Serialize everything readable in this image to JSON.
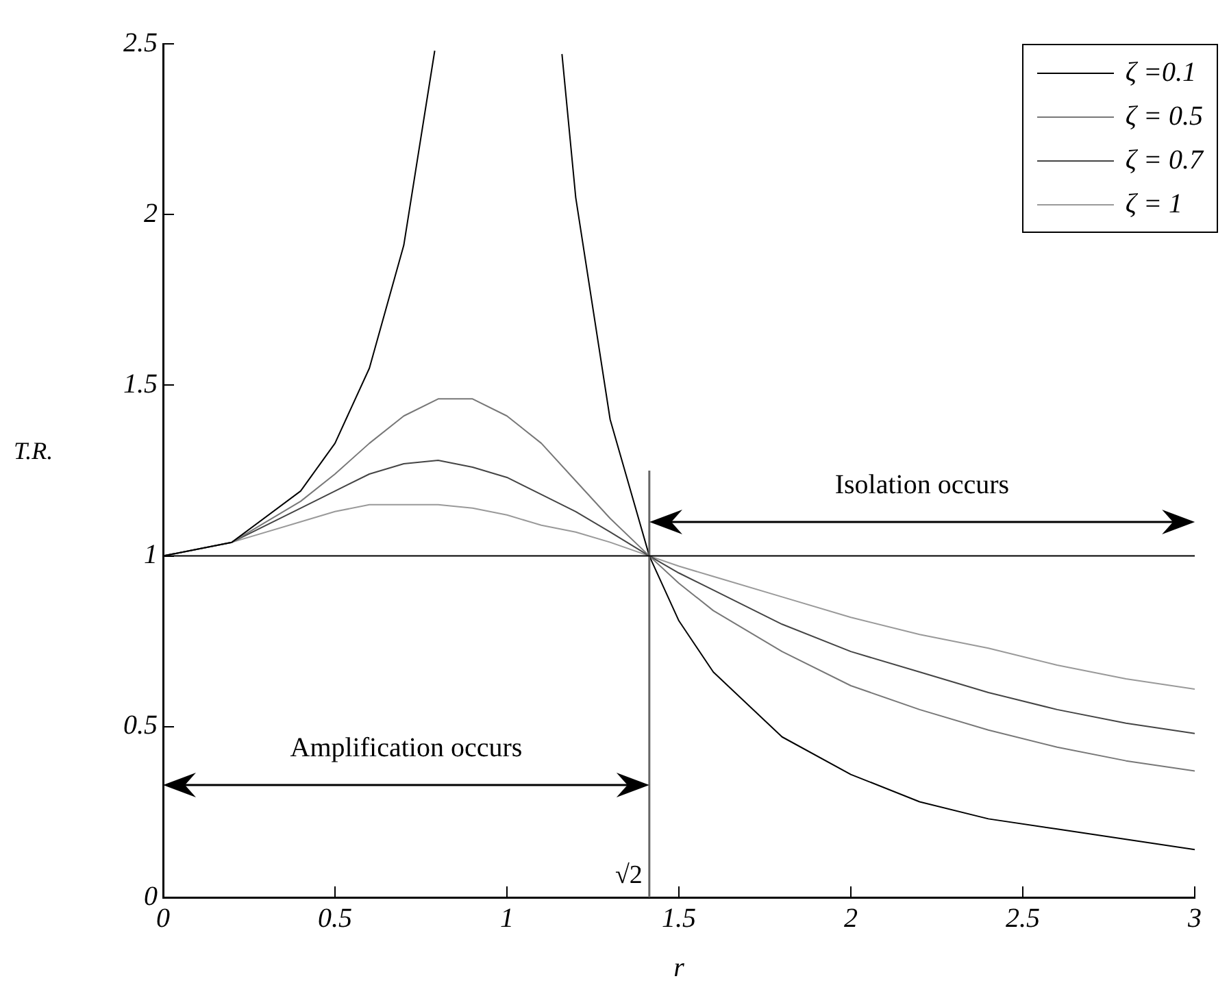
{
  "chart_data": {
    "type": "line",
    "xlabel": "r",
    "ylabel": "T.R.",
    "xlim": [
      0,
      3
    ],
    "ylim": [
      0,
      2.5
    ],
    "xticks": [
      0,
      0.5,
      1,
      1.5,
      2,
      2.5,
      3
    ],
    "yticks": [
      0,
      0.5,
      1,
      1.5,
      2,
      2.5
    ],
    "grid": false,
    "legend": "top right",
    "marker": "none",
    "line_style": "solid",
    "series": [
      {
        "name": "ζ =0.1",
        "color": "#000000",
        "x": [
          0,
          0.2,
          0.4,
          0.5,
          0.6,
          0.7,
          0.79,
          1.0,
          1.16,
          1.2,
          1.3,
          1.414,
          1.5,
          1.6,
          1.8,
          2.0,
          2.2,
          2.4,
          2.6,
          2.8,
          3.0
        ],
        "values": [
          1,
          1.04,
          1.19,
          1.33,
          1.55,
          1.91,
          2.48,
          null,
          2.47,
          2.05,
          1.4,
          1,
          0.81,
          0.66,
          0.47,
          0.36,
          0.28,
          0.23,
          0.2,
          0.17,
          0.14
        ]
      },
      {
        "name": "ζ = 0.5",
        "color": "#777777",
        "x": [
          0,
          0.2,
          0.4,
          0.5,
          0.6,
          0.7,
          0.8,
          0.9,
          1.0,
          1.1,
          1.2,
          1.3,
          1.414,
          1.5,
          1.6,
          1.8,
          2.0,
          2.2,
          2.4,
          2.6,
          2.8,
          3.0
        ],
        "values": [
          1,
          1.04,
          1.16,
          1.24,
          1.33,
          1.41,
          1.46,
          1.46,
          1.41,
          1.33,
          1.22,
          1.11,
          1,
          0.92,
          0.84,
          0.72,
          0.62,
          0.55,
          0.49,
          0.44,
          0.4,
          0.37
        ]
      },
      {
        "name": "ζ = 0.7",
        "color": "#444444",
        "x": [
          0,
          0.2,
          0.4,
          0.5,
          0.6,
          0.7,
          0.8,
          0.9,
          1.0,
          1.1,
          1.2,
          1.3,
          1.414,
          1.5,
          1.6,
          1.8,
          2.0,
          2.2,
          2.4,
          2.6,
          2.8,
          3.0
        ],
        "values": [
          1,
          1.04,
          1.14,
          1.19,
          1.24,
          1.27,
          1.28,
          1.26,
          1.23,
          1.18,
          1.13,
          1.07,
          1,
          0.95,
          0.9,
          0.8,
          0.72,
          0.66,
          0.6,
          0.55,
          0.51,
          0.48
        ]
      },
      {
        "name": "ζ = 1",
        "color": "#999999",
        "x": [
          0,
          0.2,
          0.4,
          0.5,
          0.6,
          0.7,
          0.8,
          0.9,
          1.0,
          1.1,
          1.2,
          1.3,
          1.414,
          1.5,
          1.6,
          1.8,
          2.0,
          2.2,
          2.4,
          2.6,
          2.8,
          3.0
        ],
        "values": [
          1,
          1.04,
          1.1,
          1.13,
          1.15,
          1.15,
          1.15,
          1.14,
          1.12,
          1.09,
          1.07,
          1.04,
          1,
          0.97,
          0.94,
          0.88,
          0.82,
          0.77,
          0.73,
          0.68,
          0.64,
          0.61
        ]
      }
    ],
    "ref_lines": [
      {
        "axis": "x",
        "value": 1.414,
        "label": "√2",
        "color": "#666666"
      },
      {
        "axis": "y",
        "value": 1,
        "color": "#000000"
      }
    ],
    "annotations": [
      "Amplification occurs",
      "Isolation occurs"
    ]
  }
}
